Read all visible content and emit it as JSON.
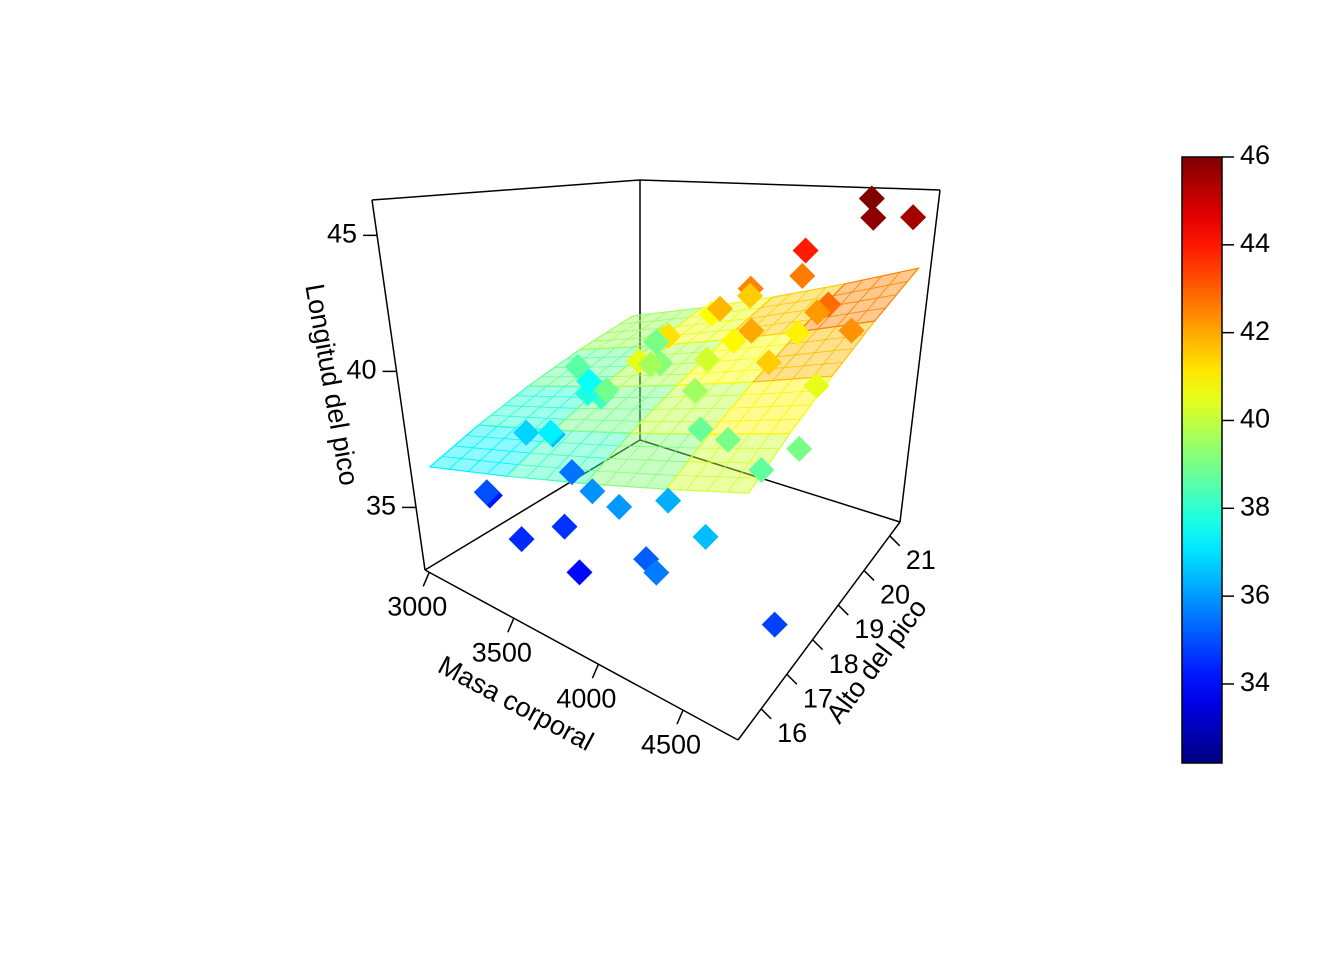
{
  "chart_data": {
    "type": "scatter3d",
    "xlabel": "Masa corporal",
    "ylabel": "Alto del pico",
    "zlabel": "Longitud del pico",
    "x": [
      3000,
      3100,
      3200,
      3300,
      3150,
      3400,
      3350,
      3500,
      3600,
      3550,
      3700,
      3450,
      3800,
      3750,
      3900,
      3650,
      4000,
      4100,
      3950,
      4200,
      4050,
      4300,
      4150,
      4400,
      4500,
      4350,
      4600,
      4700,
      4750,
      4550,
      4650,
      4800,
      4450,
      3850,
      3250,
      3100,
      3500,
      3950,
      4250,
      4100,
      3700,
      3400,
      4200,
      4600,
      3600,
      3300,
      3800,
      4400,
      4000,
      3150
    ],
    "y": [
      17.0,
      16.5,
      18.0,
      17.5,
      19.0,
      18.5,
      17.8,
      16.8,
      17.2,
      19.5,
      18.2,
      20.0,
      17.0,
      18.8,
      19.2,
      20.5,
      17.5,
      18.0,
      20.2,
      19.0,
      16.5,
      17.8,
      20.8,
      18.5,
      19.8,
      16.8,
      20.5,
      19.5,
      21.0,
      17.5,
      18.2,
      16.6,
      21.2,
      19.8,
      18.8,
      19.5,
      18.2,
      18.6,
      20.2,
      21.0,
      16.2,
      16.0,
      16.0,
      19.0,
      19.0,
      20.5,
      20.9,
      20.0,
      19.5,
      17.5
    ],
    "z": [
      34.2,
      35.0,
      36.5,
      37.2,
      38.6,
      38.2,
      35.5,
      34.6,
      35.9,
      39.2,
      40.5,
      39.8,
      36.0,
      41.2,
      40.2,
      40.8,
      36.3,
      38.8,
      42.5,
      42.0,
      35.2,
      39.0,
      43.9,
      41.5,
      42.8,
      36.5,
      45.8,
      42.3,
      45.5,
      38.7,
      39.0,
      34.8,
      46.0,
      41.8,
      37.8,
      37.5,
      38.9,
      39.5,
      41.0,
      42.6,
      34.0,
      34.5,
      35.6,
      40.5,
      39.6,
      39.0,
      41.5,
      42.2,
      40.9,
      36.8
    ],
    "xlim": [
      2975,
      4825
    ],
    "ylim": [
      15.1,
      21.4
    ],
    "zlim": [
      32.7,
      46.3
    ],
    "xticks": [
      3000,
      3500,
      4000,
      4500
    ],
    "yticks": [
      16,
      17,
      18,
      19,
      20,
      21
    ],
    "zticks": [
      35,
      40,
      45
    ],
    "colormap": "jet",
    "colorbar": {
      "clim": [
        32.2,
        46
      ],
      "ticks": [
        34,
        36,
        38,
        40,
        42,
        44,
        46
      ]
    },
    "surface": {
      "x": [
        3000,
        3450,
        3900,
        4350,
        4800
      ],
      "y": [
        15.5,
        16.9,
        18.3,
        19.7,
        21.1
      ],
      "z": [
        [
          36.33,
          37.32,
          38.31,
          39.3,
          40.29
        ],
        [
          37.1,
          38.09,
          39.08,
          40.07,
          41.06
        ],
        [
          37.87,
          38.86,
          39.85,
          40.84,
          41.83
        ],
        [
          38.64,
          39.63,
          40.62,
          41.61,
          42.6
        ],
        [
          39.41,
          40.4,
          41.39,
          42.38,
          43.37
        ]
      ]
    }
  }
}
